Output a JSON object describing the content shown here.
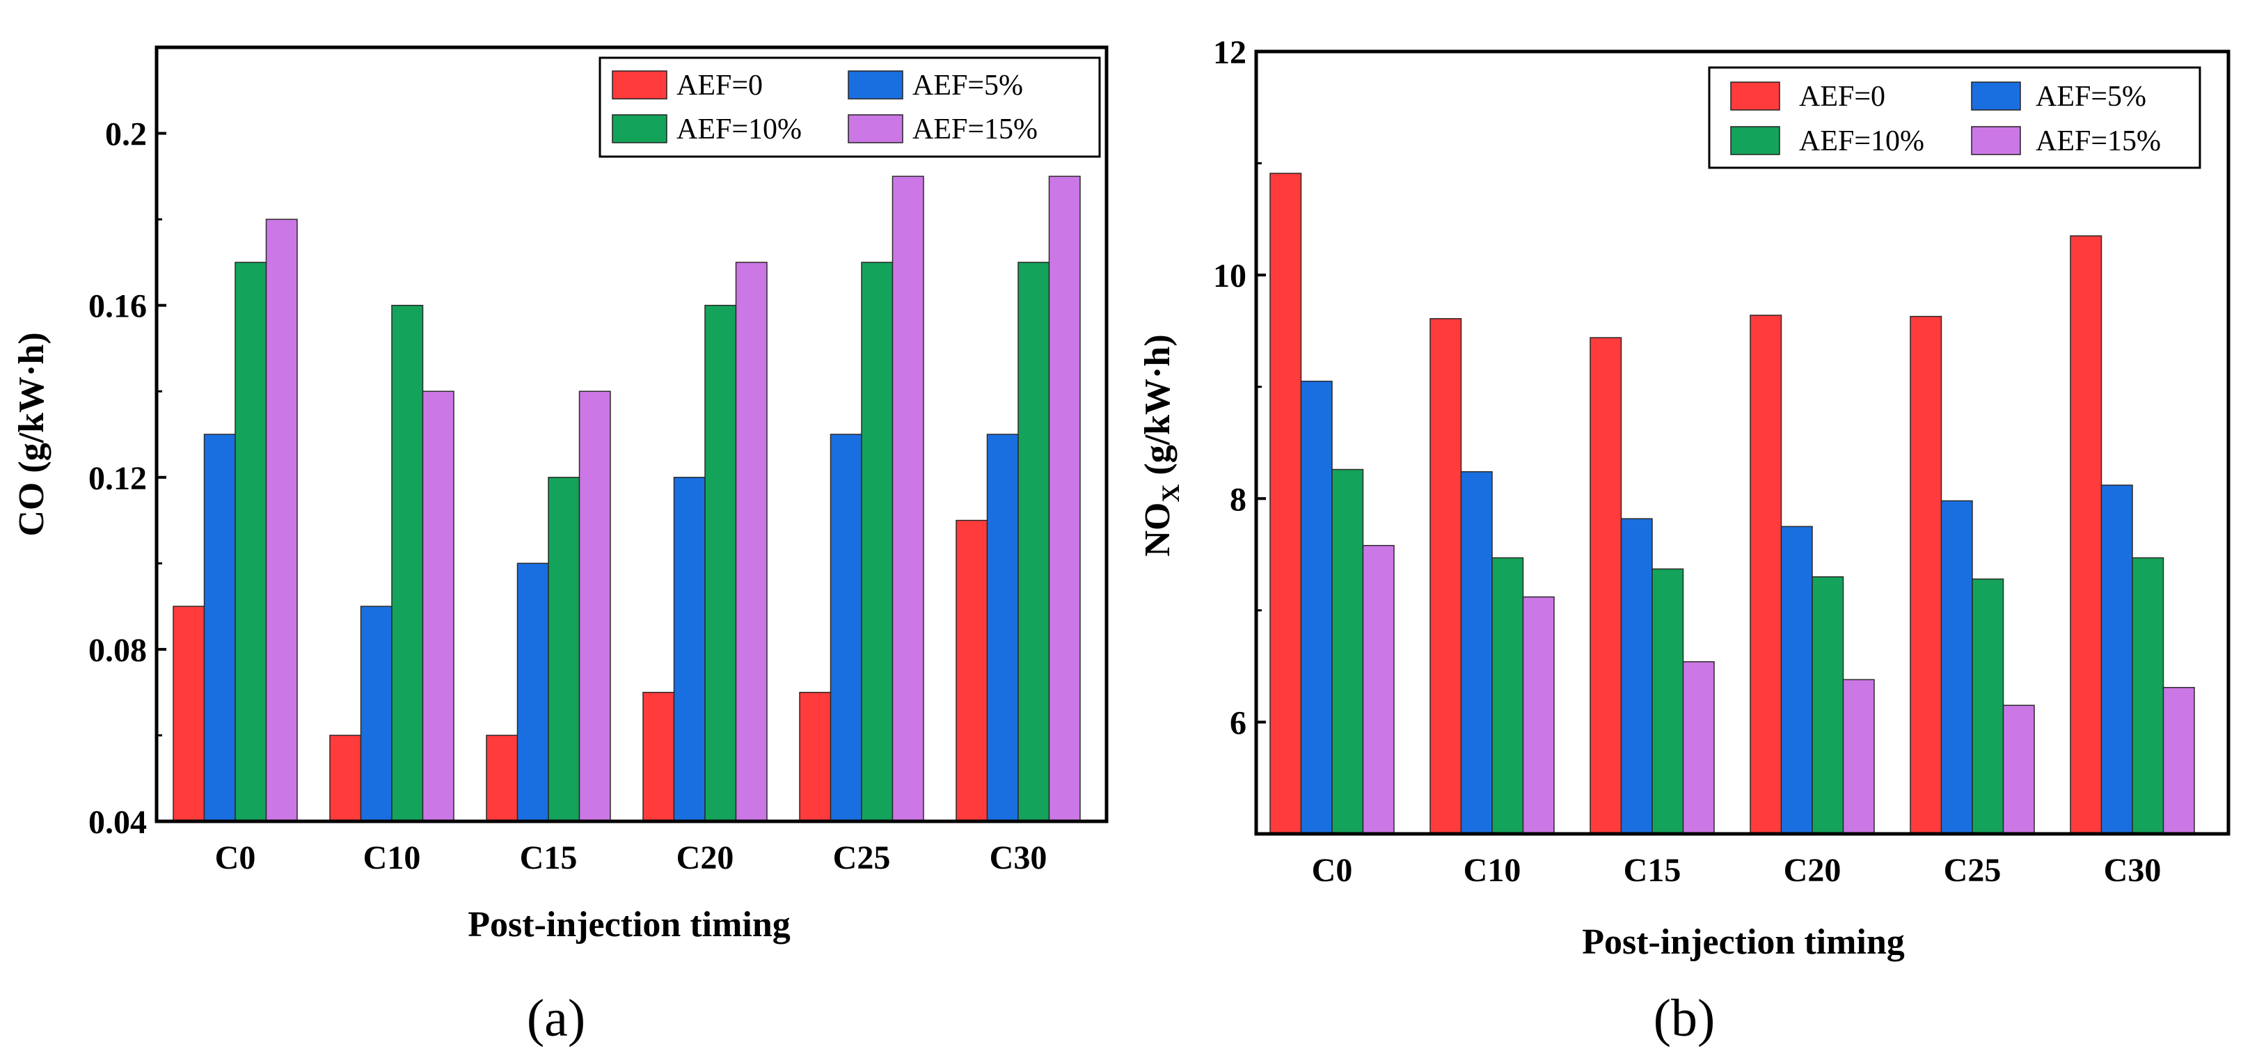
{
  "chart_data": [
    {
      "type": "bar",
      "panel_label": "(a)",
      "title": "",
      "xlabel": "Post-injection timing",
      "ylabel": "CO (g/kW·h)",
      "categories": [
        "C0",
        "C10",
        "C15",
        "C20",
        "C25",
        "C30"
      ],
      "ylim": [
        0.04,
        0.22
      ],
      "yticks": [
        0.04,
        0.08,
        0.12,
        0.16,
        0.2
      ],
      "ytick_labels": [
        "0.04",
        "0.08",
        "0.12",
        "0.16",
        "0.2"
      ],
      "grid": false,
      "legend_position": "top-right",
      "series": [
        {
          "name": "AEF=0",
          "color": "#FF3B3B",
          "values": [
            0.09,
            0.06,
            0.06,
            0.07,
            0.07,
            0.11
          ]
        },
        {
          "name": "AEF=5%",
          "color": "#1A6FE0",
          "values": [
            0.13,
            0.09,
            0.1,
            0.12,
            0.13,
            0.13
          ]
        },
        {
          "name": "AEF=10%",
          "color": "#14A35A",
          "values": [
            0.17,
            0.16,
            0.12,
            0.16,
            0.17,
            0.17
          ]
        },
        {
          "name": "AEF=15%",
          "color": "#CC77E6",
          "values": [
            0.18,
            0.14,
            0.14,
            0.17,
            0.19,
            0.19
          ]
        }
      ]
    },
    {
      "type": "bar",
      "panel_label": "(b)",
      "title": "",
      "xlabel": "Post-injection timing",
      "ylabel_main": "NO",
      "ylabel_sub": "X",
      "ylabel_unit": " (g/kW·h)",
      "categories": [
        "C0",
        "C10",
        "C15",
        "C20",
        "C25",
        "C30"
      ],
      "ylim": [
        5,
        12
      ],
      "yticks": [
        6,
        8,
        10,
        12
      ],
      "ytick_labels": [
        "6",
        "8",
        "10",
        "12"
      ],
      "grid": false,
      "legend_position": "top-right",
      "series": [
        {
          "name": "AEF=0",
          "color": "#FF3B3B",
          "values": [
            10.91,
            9.61,
            9.44,
            9.64,
            9.63,
            10.35
          ]
        },
        {
          "name": "AEF=5%",
          "color": "#1A6FE0",
          "values": [
            9.05,
            8.24,
            7.82,
            7.75,
            7.98,
            8.12
          ]
        },
        {
          "name": "AEF=10%",
          "color": "#14A35A",
          "values": [
            8.26,
            7.47,
            7.37,
            7.3,
            7.28,
            7.47
          ]
        },
        {
          "name": "AEF=15%",
          "color": "#CC77E6",
          "values": [
            7.58,
            7.12,
            6.54,
            6.38,
            6.15,
            6.31
          ]
        }
      ]
    }
  ]
}
